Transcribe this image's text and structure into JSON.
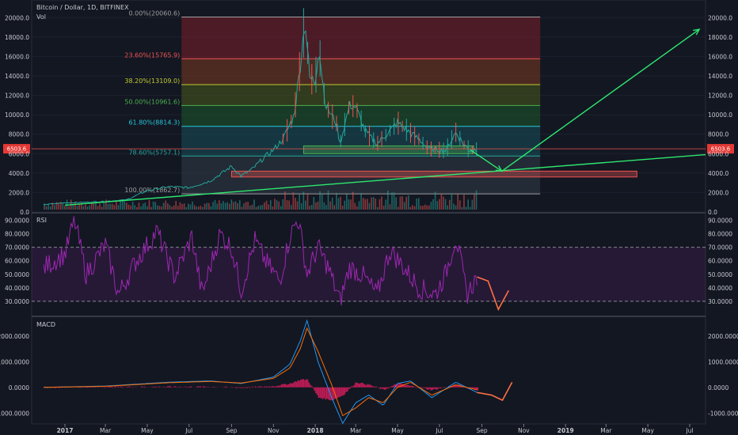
{
  "header": {
    "title": "Bitcoin / Dollar, 1D, BITFINEX",
    "volume_label": "Vol"
  },
  "colors": {
    "background": "#131722",
    "up": "#26a69a",
    "down": "#ef5350",
    "rsi_line": "#9c27b0",
    "projection": "#ff7043",
    "trend_arrow": "#2ee86f",
    "macd_line": "#2196f3",
    "signal_line": "#ff6d00",
    "histogram": "#e91e63"
  },
  "chart_data": [
    {
      "id": "price",
      "type": "line",
      "title": "Bitcoin / Dollar, 1D, BITFINEX",
      "ylim": [
        0,
        21000
      ],
      "y_ticks": [
        "0.0",
        "2000.0",
        "4000.0",
        "6000.0",
        "8000.0",
        "10000.0",
        "12000.0",
        "14000.0",
        "16000.0",
        "18000.0",
        "20000.0"
      ],
      "x_ticks": [
        "2017",
        "Mar",
        "May",
        "Jul",
        "Sep",
        "Nov",
        "2018",
        "Mar",
        "May",
        "Jul",
        "Sep",
        "Nov",
        "2019",
        "Mar",
        "May",
        "Jul"
      ],
      "current_price_label": "6503.6",
      "current_price": 6503.6,
      "series": [
        {
          "name": "",
          "x": [
            "2016-12-01",
            "2017-01-01",
            "2017-02-01",
            "2017-03-01",
            "2017-04-01",
            "2017-05-01",
            "2017-06-01",
            "2017-07-01",
            "2017-08-01",
            "2017-08-20",
            "2017-09-01",
            "2017-09-15",
            "2017-10-01",
            "2017-10-20",
            "2017-11-01",
            "2017-11-15",
            "2017-12-01",
            "2017-12-10",
            "2017-12-17",
            "2017-12-24",
            "2018-01-01",
            "2018-01-06",
            "2018-01-16",
            "2018-02-01",
            "2018-02-06",
            "2018-02-20",
            "2018-03-01",
            "2018-03-15",
            "2018-04-01",
            "2018-04-15",
            "2018-05-01",
            "2018-05-15",
            "2018-06-01",
            "2018-06-15",
            "2018-07-01",
            "2018-07-10",
            "2018-07-25",
            "2018-08-05",
            "2018-08-15",
            "2018-08-25"
          ],
          "values": [
            750,
            950,
            1000,
            1100,
            1250,
            2200,
            2600,
            2500,
            3200,
            4100,
            4700,
            3700,
            4400,
            5700,
            6400,
            7500,
            9900,
            15000,
            19800,
            13800,
            13400,
            17000,
            11000,
            9100,
            7000,
            11000,
            10800,
            8300,
            7000,
            8000,
            9200,
            8400,
            7500,
            6500,
            6400,
            6300,
            8200,
            7000,
            6300,
            6500
          ]
        }
      ],
      "fibonacci_levels": [
        {
          "label": "0.00%(20060.6)",
          "value": 20060.6,
          "color": "#9e9e9e"
        },
        {
          "label": "23.60%(15765.9)",
          "value": 15765.9,
          "color": "#ef5350"
        },
        {
          "label": "38.20%(13109.0)",
          "value": 13109.0,
          "color": "#c0ca33"
        },
        {
          "label": "50.00%(10961.6)",
          "value": 10961.6,
          "color": "#4caf50"
        },
        {
          "label": "61.80%(8814.3)",
          "value": 8814.3,
          "color": "#26c6da"
        },
        {
          "label": "78.60%(5757.1)",
          "value": 5757.1,
          "color": "#26a69a"
        },
        {
          "label": "100.00%(1862.7)",
          "value": 1862.7,
          "color": "#9e9e9e"
        }
      ],
      "projection_arrow": {
        "x": [
          "2018-08-15",
          "2018-09-30",
          "2019-07-15"
        ],
        "values": [
          6400,
          4200,
          18800
        ]
      },
      "support_trendline": {
        "x": [
          "2017-01-01",
          "2019-08-15"
        ],
        "values": [
          700,
          5900
        ]
      },
      "zones": [
        {
          "name": "",
          "x": [
            "2017-12-15",
            "2018-08-20"
          ],
          "values": [
            6000,
            6800
          ],
          "color": "#4caf50"
        },
        {
          "name": "",
          "x": [
            "2017-09-01",
            "2019-04-15"
          ],
          "values": [
            3600,
            4200
          ],
          "color": "#ef5350"
        }
      ]
    },
    {
      "id": "rsi",
      "type": "line",
      "title": "RSI",
      "ylim": [
        20,
        95
      ],
      "y_ticks": [
        "30.0000",
        "40.0000",
        "50.0000",
        "60.0000",
        "70.0000",
        "80.0000",
        "90.0000"
      ],
      "bands": [
        30,
        70
      ],
      "series": [
        {
          "name": "",
          "x": [
            "2016-12-01",
            "2017-01-01",
            "2017-01-15",
            "2017-02-01",
            "2017-03-01",
            "2017-03-20",
            "2017-04-15",
            "2017-05-15",
            "2017-06-10",
            "2017-07-05",
            "2017-07-20",
            "2017-08-15",
            "2017-09-01",
            "2017-09-15",
            "2017-10-05",
            "2017-10-20",
            "2017-11-10",
            "2017-11-25",
            "2017-12-07",
            "2017-12-20",
            "2018-01-05",
            "2018-01-20",
            "2018-02-06",
            "2018-02-20",
            "2018-03-10",
            "2018-04-01",
            "2018-04-20",
            "2018-05-10",
            "2018-06-01",
            "2018-06-25",
            "2018-07-10",
            "2018-07-25",
            "2018-08-10",
            "2018-08-25"
          ],
          "values": [
            55,
            65,
            90,
            50,
            72,
            35,
            60,
            82,
            48,
            78,
            35,
            80,
            70,
            38,
            75,
            60,
            45,
            78,
            92,
            50,
            70,
            55,
            30,
            55,
            50,
            35,
            68,
            55,
            40,
            35,
            50,
            78,
            35,
            48
          ]
        }
      ],
      "projection": {
        "x": [
          "2018-08-25",
          "2018-09-10",
          "2018-09-25",
          "2018-10-10"
        ],
        "values": [
          48,
          45,
          24,
          38
        ]
      }
    },
    {
      "id": "macd",
      "type": "line",
      "title": "MACD",
      "ylim": [
        -1300,
        2700
      ],
      "y_ticks": [
        "-1000.0000",
        "0.0000",
        "1000.0000",
        "2000.0000"
      ],
      "series": [
        {
          "name": "",
          "x": [
            "2016-12-01",
            "2017-03-01",
            "2017-06-01",
            "2017-08-01",
            "2017-09-15",
            "2017-11-01",
            "2017-11-25",
            "2017-12-10",
            "2017-12-20",
            "2018-01-05",
            "2018-01-25",
            "2018-02-10",
            "2018-03-01",
            "2018-03-20",
            "2018-04-10",
            "2018-05-01",
            "2018-05-20",
            "2018-06-20",
            "2018-07-25",
            "2018-08-25"
          ],
          "values": [
            0,
            50,
            200,
            250,
            150,
            400,
            900,
            1800,
            2600,
            1000,
            -400,
            -1400,
            -600,
            -300,
            -700,
            150,
            250,
            -400,
            200,
            -200
          ]
        },
        {
          "name": "",
          "x": [
            "2016-12-01",
            "2017-03-01",
            "2017-06-01",
            "2017-08-01",
            "2017-09-15",
            "2017-11-01",
            "2017-11-25",
            "2017-12-10",
            "2017-12-20",
            "2018-01-05",
            "2018-01-25",
            "2018-02-10",
            "2018-03-01",
            "2018-03-20",
            "2018-04-10",
            "2018-05-01",
            "2018-05-20",
            "2018-06-20",
            "2018-07-25",
            "2018-08-25"
          ],
          "values": [
            0,
            40,
            180,
            230,
            170,
            350,
            750,
            1500,
            2300,
            1400,
            100,
            -1100,
            -800,
            -400,
            -600,
            0,
            200,
            -300,
            100,
            -100
          ]
        }
      ],
      "projection": {
        "x": [
          "2018-08-25",
          "2018-09-15",
          "2018-10-01",
          "2018-10-15"
        ],
        "values": [
          -200,
          -300,
          -500,
          200
        ]
      }
    }
  ]
}
